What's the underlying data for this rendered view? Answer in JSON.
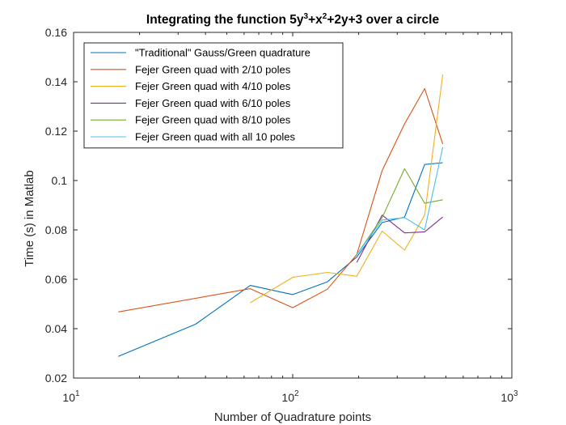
{
  "chart_data": {
    "type": "line",
    "title": {
      "prefix": "Integrating the function 5y",
      "exp1": "3",
      "mid1": "+x",
      "exp2": "2",
      "suffix": "+2y+3 over a circle"
    },
    "xlabel": "Number of Quadrature points",
    "ylabel": "Time (s) in Matlab",
    "x_scale": "log",
    "xlim": [
      10,
      1000
    ],
    "ylim": [
      0.02,
      0.16
    ],
    "x_ticks": [
      {
        "base": "10",
        "exp": "1",
        "value": 10
      },
      {
        "base": "10",
        "exp": "2",
        "value": 100
      },
      {
        "base": "10",
        "exp": "3",
        "value": 1000
      }
    ],
    "y_ticks": [
      {
        "label": "0.02",
        "value": 0.02
      },
      {
        "label": "0.04",
        "value": 0.04
      },
      {
        "label": "0.06",
        "value": 0.06
      },
      {
        "label": "0.08",
        "value": 0.08
      },
      {
        "label": "0.1",
        "value": 0.1
      },
      {
        "label": "0.12",
        "value": 0.12
      },
      {
        "label": "0.14",
        "value": 0.14
      },
      {
        "label": "0.16",
        "value": 0.16
      }
    ],
    "grid": false,
    "legend_position": "top-left",
    "series": [
      {
        "name": "\"Traditional\" Gauss/Green quadrature",
        "color": "#0072BD",
        "x": [
          16,
          36,
          64,
          100,
          144,
          196,
          256,
          324,
          400,
          484
        ],
        "y": [
          0.0288,
          0.0418,
          0.0575,
          0.0538,
          0.059,
          0.069,
          0.083,
          0.0852,
          0.1065,
          0.1072
        ]
      },
      {
        "name": "Fejer Green quad with 2/10 poles",
        "color": "#D95319",
        "x": [
          16,
          64,
          100,
          144,
          196,
          256,
          324,
          400,
          484
        ],
        "y": [
          0.0468,
          0.0562,
          0.0485,
          0.056,
          0.07,
          0.104,
          0.123,
          0.1372,
          0.1148
        ]
      },
      {
        "name": "Fejer Green quad with 4/10 poles",
        "color": "#EDB120",
        "x": [
          64,
          100,
          144,
          196,
          256,
          324,
          400,
          484
        ],
        "y": [
          0.0505,
          0.0608,
          0.0628,
          0.0612,
          0.0795,
          0.0718,
          0.086,
          0.143
        ]
      },
      {
        "name": "Fejer Green quad with 6/10 poles",
        "color": "#7E2F8E",
        "x": [
          196,
          256,
          324,
          400,
          484
        ],
        "y": [
          0.0668,
          0.086,
          0.0788,
          0.0792,
          0.0852
        ]
      },
      {
        "name": "Fejer Green quad with 8/10 poles",
        "color": "#77AC30",
        "x": [
          196,
          256,
          324,
          400,
          484
        ],
        "y": [
          0.07,
          0.085,
          0.1048,
          0.0908,
          0.0922
        ]
      },
      {
        "name": "Fejer Green quad with all 10 poles",
        "color": "#4DBEEE",
        "x": [
          196,
          256,
          324,
          400,
          484
        ],
        "y": [
          0.07,
          0.084,
          0.085,
          0.08,
          0.1135
        ]
      }
    ]
  }
}
